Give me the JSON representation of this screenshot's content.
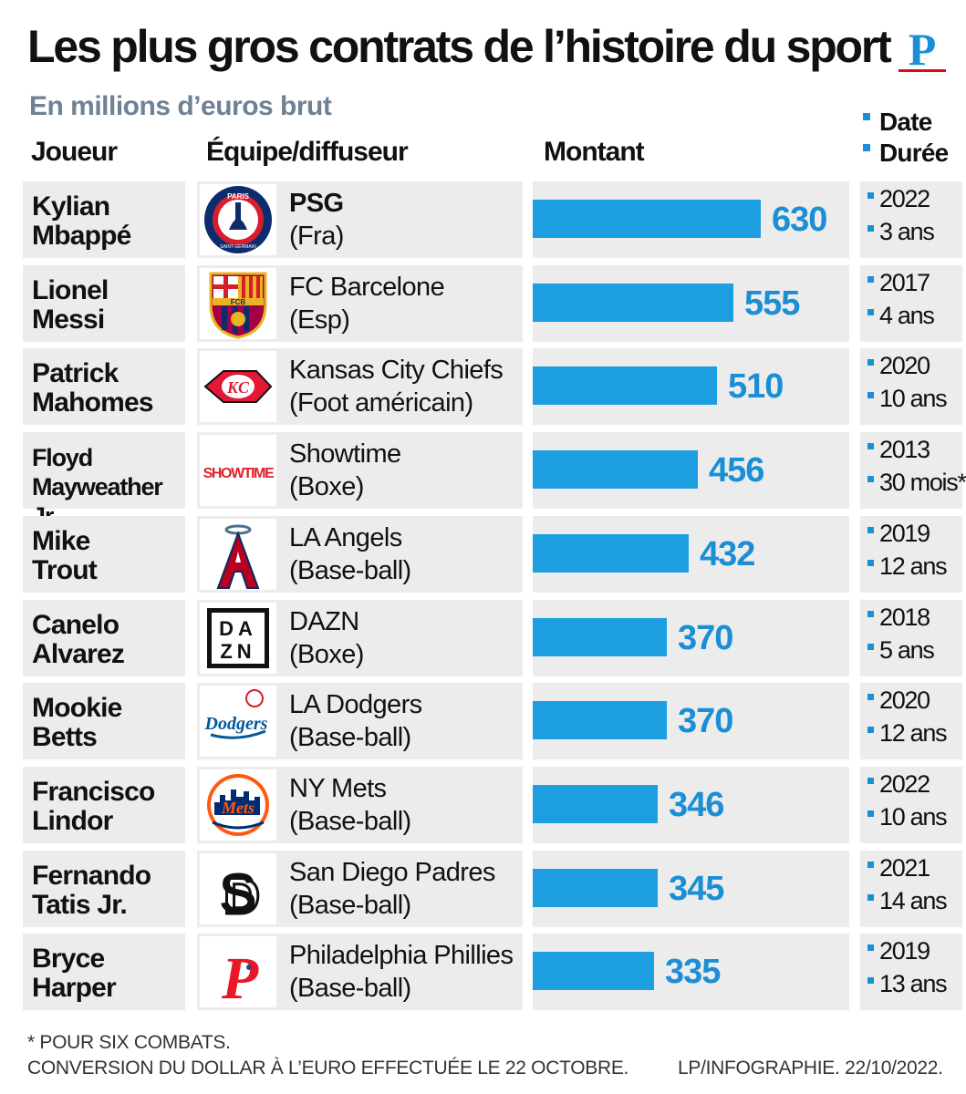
{
  "header": {
    "title": "Les plus gros contrats de l’histoire du sport",
    "subtitle": "En millions d’euros brut",
    "logo_letter": "P",
    "legend_date": "Date",
    "legend_duration": "Durée"
  },
  "columns": {
    "player": "Joueur",
    "team": "Équipe/diffuseur",
    "amount": "Montant"
  },
  "colors": {
    "bar": "#1c9ee0",
    "amount_text": "#1a8fd6",
    "row_bg": "#ececec",
    "accent_red": "#e30613"
  },
  "chart_data": {
    "type": "bar",
    "orientation": "horizontal",
    "title": "Les plus gros contrats de l’histoire du sport",
    "subtitle": "En millions d’euros brut",
    "categories": [
      "Kylian Mbappé",
      "Lionel Messi",
      "Patrick Mahomes",
      "Floyd Mayweather Jr.",
      "Mike Trout",
      "Canelo Alvarez",
      "Mookie Betts",
      "Francisco Lindor",
      "Fernando Tatis Jr.",
      "Bryce Harper"
    ],
    "values": [
      630,
      555,
      510,
      456,
      432,
      370,
      370,
      346,
      345,
      335
    ],
    "xlim": [
      0,
      630
    ],
    "grid": false
  },
  "rows": [
    {
      "name1": "Kylian",
      "name2": "Mbappé",
      "team": "PSG",
      "team_bold": true,
      "sub": "(Fra)",
      "amount": 630,
      "amount_label": "630",
      "date": "2022",
      "duration": "3 ans",
      "logo": "psg-logo-icon"
    },
    {
      "name1": "Lionel",
      "name2": "Messi",
      "team": "FC Barcelone",
      "team_bold": false,
      "sub": "(Esp)",
      "amount": 555,
      "amount_label": "555",
      "date": "2017",
      "duration": "4 ans",
      "logo": "fc-barcelona-logo-icon"
    },
    {
      "name1": "Patrick",
      "name2": "Mahomes",
      "team": "Kansas City Chiefs",
      "team_bold": false,
      "sub": "(Foot américain)",
      "amount": 510,
      "amount_label": "510",
      "date": "2020",
      "duration": "10 ans",
      "logo": "chiefs-logo-icon"
    },
    {
      "name1": "Floyd",
      "name2": "Mayweather Jr.",
      "team": "Showtime",
      "team_bold": false,
      "sub": "(Boxe)",
      "amount": 456,
      "amount_label": "456",
      "date": "2013",
      "duration": "30 mois*",
      "logo": "showtime-logo-icon",
      "logo_text": "SHOWTIME"
    },
    {
      "name1": "Mike",
      "name2": "Trout",
      "team": "LA Angels",
      "team_bold": false,
      "sub": "(Base-ball)",
      "amount": 432,
      "amount_label": "432",
      "date": "2019",
      "duration": "12 ans",
      "logo": "angels-logo-icon"
    },
    {
      "name1": "Canelo",
      "name2": "Alvarez",
      "team": "DAZN",
      "team_bold": false,
      "sub": "(Boxe)",
      "amount": 370,
      "amount_label": "370",
      "date": "2018",
      "duration": "5 ans",
      "logo": "dazn-logo-icon"
    },
    {
      "name1": "Mookie",
      "name2": "Betts",
      "team": "LA Dodgers",
      "team_bold": false,
      "sub": "(Base-ball)",
      "amount": 370,
      "amount_label": "370",
      "date": "2020",
      "duration": "12 ans",
      "logo": "dodgers-logo-icon"
    },
    {
      "name1": "Francisco",
      "name2": "Lindor",
      "team": "NY Mets",
      "team_bold": false,
      "sub": "(Base-ball)",
      "amount": 346,
      "amount_label": "346",
      "date": "2022",
      "duration": "10 ans",
      "logo": "mets-logo-icon"
    },
    {
      "name1": "Fernando",
      "name2": "Tatis Jr.",
      "team": "San Diego Padres",
      "team_bold": false,
      "sub": "(Base-ball)",
      "amount": 345,
      "amount_label": "345",
      "date": "2021",
      "duration": "14 ans",
      "logo": "padres-logo-icon"
    },
    {
      "name1": "Bryce",
      "name2": "Harper",
      "team": "Philadelphia Phillies",
      "team_bold": false,
      "sub": "(Base-ball)",
      "amount": 335,
      "amount_label": "335",
      "date": "2019",
      "duration": "13 ans",
      "logo": "phillies-logo-icon"
    }
  ],
  "footer": {
    "note1": "* POUR SIX COMBATS.",
    "note2": "CONVERSION DU DOLLAR À L’EURO EFFECTUÉE LE 22 OCTOBRE.",
    "credit": "LP/INFOGRAPHIE.  22/10/2022."
  }
}
